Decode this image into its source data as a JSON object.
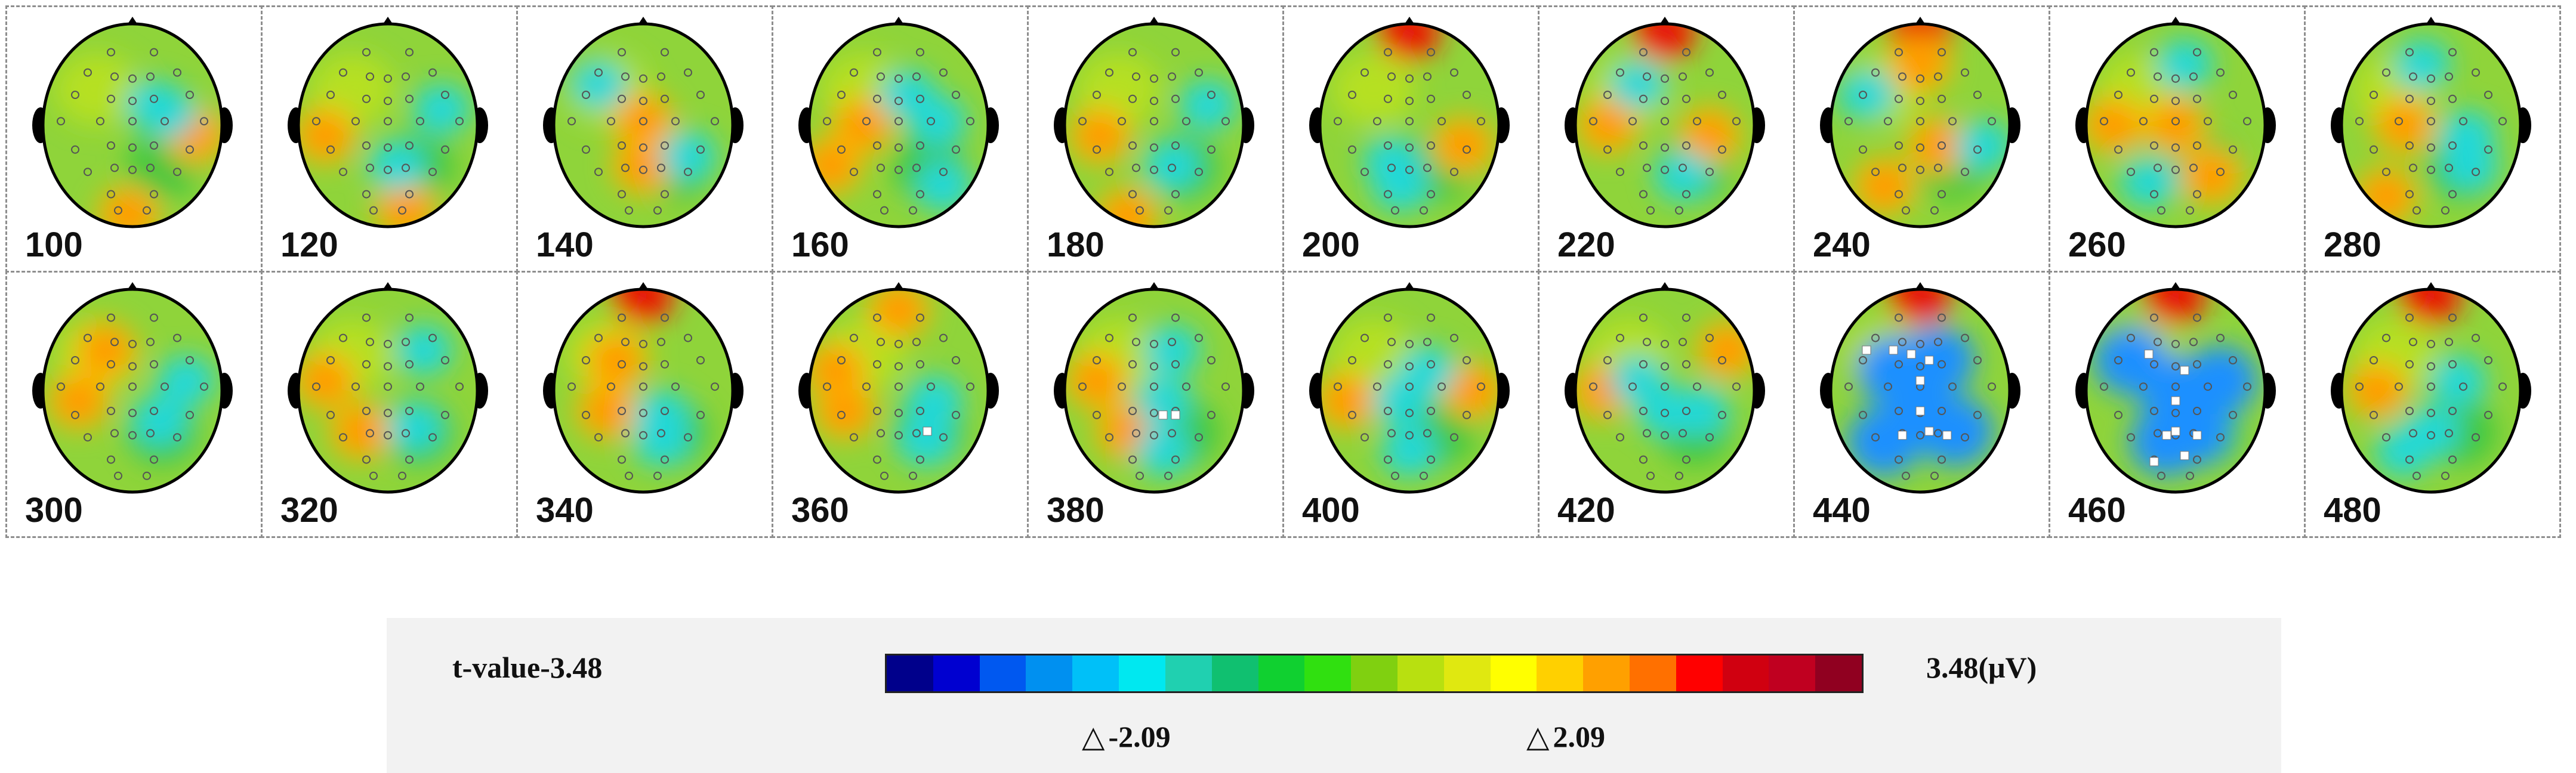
{
  "maps": [
    {
      "time": "100",
      "hot_sites": [
        [
          0.48,
          0.94
        ],
        [
          0.85,
          0.55
        ]
      ],
      "cool_sites": [
        [
          0.62,
          0.4
        ],
        [
          0.7,
          0.44
        ]
      ],
      "sig_electrodes": []
    },
    {
      "time": "120",
      "hot_sites": [
        [
          0.15,
          0.55
        ],
        [
          0.6,
          0.92
        ]
      ],
      "cool_sites": [
        [
          0.8,
          0.42
        ],
        [
          0.55,
          0.7
        ]
      ],
      "sig_electrodes": []
    },
    {
      "time": "140",
      "hot_sites": [
        [
          0.5,
          0.48
        ],
        [
          0.5,
          0.7
        ]
      ],
      "cool_sites": [
        [
          0.25,
          0.3
        ],
        [
          0.75,
          0.65
        ]
      ],
      "sig_electrodes": []
    },
    {
      "time": "160",
      "hot_sites": [
        [
          0.12,
          0.7
        ],
        [
          0.3,
          0.5
        ]
      ],
      "cool_sites": [
        [
          0.72,
          0.48
        ],
        [
          0.75,
          0.8
        ],
        [
          0.55,
          0.35
        ]
      ],
      "sig_electrodes": []
    },
    {
      "time": "180",
      "hot_sites": [
        [
          0.2,
          0.55
        ],
        [
          0.35,
          0.95
        ]
      ],
      "cool_sites": [
        [
          0.8,
          0.4
        ],
        [
          0.6,
          0.7
        ]
      ],
      "sig_electrodes": []
    },
    {
      "time": "200",
      "hot_sites": [
        [
          0.5,
          0.04
        ],
        [
          0.8,
          0.6
        ]
      ],
      "cool_sites": [
        [
          0.4,
          0.68
        ],
        [
          0.45,
          0.8
        ]
      ],
      "sig_electrodes": []
    },
    {
      "time": "220",
      "hot_sites": [
        [
          0.5,
          0.04
        ],
        [
          0.18,
          0.5
        ],
        [
          0.75,
          0.55
        ]
      ],
      "cool_sites": [
        [
          0.6,
          0.75
        ],
        [
          0.35,
          0.3
        ]
      ],
      "sig_electrodes": []
    },
    {
      "time": "240",
      "hot_sites": [
        [
          0.5,
          0.04
        ],
        [
          0.5,
          0.2
        ],
        [
          0.6,
          0.6
        ],
        [
          0.3,
          0.8
        ]
      ],
      "cool_sites": [
        [
          0.2,
          0.35
        ],
        [
          0.85,
          0.6
        ]
      ],
      "sig_electrodes": []
    },
    {
      "time": "260",
      "hot_sites": [
        [
          0.15,
          0.5
        ],
        [
          0.5,
          0.5
        ],
        [
          0.7,
          0.75
        ]
      ],
      "cool_sites": [
        [
          0.55,
          0.2
        ],
        [
          0.35,
          0.78
        ]
      ],
      "sig_electrodes": []
    },
    {
      "time": "280",
      "hot_sites": [
        [
          0.35,
          0.5
        ],
        [
          0.25,
          0.85
        ]
      ],
      "cool_sites": [
        [
          0.7,
          0.55
        ],
        [
          0.72,
          0.7
        ],
        [
          0.45,
          0.2
        ]
      ],
      "sig_electrodes": []
    },
    {
      "time": "300",
      "hot_sites": [
        [
          0.2,
          0.55
        ],
        [
          0.35,
          0.3
        ]
      ],
      "cool_sites": [
        [
          0.65,
          0.65
        ],
        [
          0.8,
          0.45
        ]
      ],
      "sig_electrodes": []
    },
    {
      "time": "320",
      "hot_sites": [
        [
          0.15,
          0.45
        ],
        [
          0.35,
          0.7
        ]
      ],
      "cool_sites": [
        [
          0.65,
          0.68
        ],
        [
          0.7,
          0.3
        ]
      ],
      "sig_electrodes": []
    },
    {
      "time": "340",
      "hot_sites": [
        [
          0.5,
          0.03
        ],
        [
          0.35,
          0.35
        ],
        [
          0.3,
          0.6
        ]
      ],
      "cool_sites": [
        [
          0.6,
          0.62
        ],
        [
          0.6,
          0.75
        ]
      ],
      "sig_electrodes": []
    },
    {
      "time": "360",
      "hot_sites": [
        [
          0.15,
          0.4
        ],
        [
          0.2,
          0.6
        ],
        [
          0.5,
          0.1
        ]
      ],
      "cool_sites": [
        [
          0.7,
          0.55
        ],
        [
          0.65,
          0.75
        ]
      ],
      "sig_electrodes": [
        [
          0.66,
          0.7
        ]
      ]
    },
    {
      "time": "380",
      "hot_sites": [
        [
          0.18,
          0.45
        ],
        [
          0.35,
          0.7
        ]
      ],
      "cool_sites": [
        [
          0.55,
          0.55
        ],
        [
          0.55,
          0.8
        ],
        [
          0.6,
          0.3
        ]
      ],
      "sig_electrodes": [
        [
          0.55,
          0.62
        ],
        [
          0.62,
          0.62
        ]
      ]
    },
    {
      "time": "400",
      "hot_sites": [
        [
          0.15,
          0.55
        ],
        [
          0.85,
          0.5
        ]
      ],
      "cool_sites": [
        [
          0.45,
          0.55
        ],
        [
          0.6,
          0.4
        ],
        [
          0.5,
          0.8
        ]
      ],
      "sig_electrodes": []
    },
    {
      "time": "420",
      "hot_sites": [
        [
          0.15,
          0.5
        ],
        [
          0.85,
          0.3
        ]
      ],
      "cool_sites": [
        [
          0.35,
          0.45
        ],
        [
          0.5,
          0.6
        ],
        [
          0.7,
          0.6
        ]
      ],
      "sig_electrodes": []
    },
    {
      "time": "440",
      "hot_sites": [
        [
          0.5,
          0.03
        ]
      ],
      "cool_sites": [
        [
          0.35,
          0.4
        ],
        [
          0.5,
          0.6
        ],
        [
          0.6,
          0.35
        ],
        [
          0.3,
          0.75
        ],
        [
          0.7,
          0.7
        ]
      ],
      "sig_electrodes": [
        [
          0.2,
          0.3
        ],
        [
          0.35,
          0.3
        ],
        [
          0.45,
          0.32
        ],
        [
          0.55,
          0.35
        ],
        [
          0.5,
          0.45
        ],
        [
          0.5,
          0.6
        ],
        [
          0.55,
          0.7
        ],
        [
          0.65,
          0.72
        ],
        [
          0.4,
          0.72
        ]
      ]
    },
    {
      "time": "460",
      "hot_sites": [
        [
          0.5,
          0.03
        ]
      ],
      "cool_sites": [
        [
          0.25,
          0.35
        ],
        [
          0.5,
          0.5
        ],
        [
          0.6,
          0.7
        ],
        [
          0.45,
          0.75
        ],
        [
          0.75,
          0.45
        ]
      ],
      "sig_electrodes": [
        [
          0.35,
          0.32
        ],
        [
          0.55,
          0.4
        ],
        [
          0.5,
          0.55
        ],
        [
          0.5,
          0.7
        ],
        [
          0.62,
          0.72
        ],
        [
          0.45,
          0.72
        ],
        [
          0.55,
          0.82
        ],
        [
          0.38,
          0.85
        ]
      ]
    },
    {
      "time": "480",
      "hot_sites": [
        [
          0.5,
          0.03
        ],
        [
          0.2,
          0.5
        ]
      ],
      "cool_sites": [
        [
          0.65,
          0.45
        ],
        [
          0.5,
          0.7
        ],
        [
          0.35,
          0.8
        ]
      ],
      "sig_electrodes": []
    }
  ],
  "electrodes": [
    [
      0.38,
      0.14
    ],
    [
      0.62,
      0.14
    ],
    [
      0.25,
      0.24
    ],
    [
      0.4,
      0.26
    ],
    [
      0.5,
      0.27
    ],
    [
      0.6,
      0.26
    ],
    [
      0.75,
      0.24
    ],
    [
      0.18,
      0.35
    ],
    [
      0.38,
      0.37
    ],
    [
      0.5,
      0.38
    ],
    [
      0.62,
      0.37
    ],
    [
      0.82,
      0.35
    ],
    [
      0.1,
      0.48
    ],
    [
      0.32,
      0.48
    ],
    [
      0.5,
      0.48
    ],
    [
      0.68,
      0.48
    ],
    [
      0.9,
      0.48
    ],
    [
      0.18,
      0.62
    ],
    [
      0.38,
      0.6
    ],
    [
      0.5,
      0.61
    ],
    [
      0.62,
      0.6
    ],
    [
      0.82,
      0.62
    ],
    [
      0.25,
      0.73
    ],
    [
      0.4,
      0.71
    ],
    [
      0.5,
      0.72
    ],
    [
      0.6,
      0.71
    ],
    [
      0.75,
      0.73
    ],
    [
      0.38,
      0.84
    ],
    [
      0.62,
      0.84
    ],
    [
      0.42,
      0.92
    ],
    [
      0.58,
      0.92
    ]
  ],
  "colorbar": {
    "min_label": "t-value-3.48",
    "max_label": "3.48(μV)",
    "neg_threshold": "-2.09",
    "pos_threshold": "2.09",
    "triangle_glyph": "△",
    "colors": [
      "#00008b",
      "#0000d0",
      "#0058f0",
      "#0090f0",
      "#00c0f8",
      "#00e8f0",
      "#20d0b0",
      "#10c070",
      "#10d030",
      "#30e010",
      "#80d010",
      "#b8e010",
      "#e0e810",
      "#ffff00",
      "#ffd000",
      "#ffa000",
      "#ff7000",
      "#ff0000",
      "#d00010",
      "#c00020",
      "#900020"
    ]
  }
}
